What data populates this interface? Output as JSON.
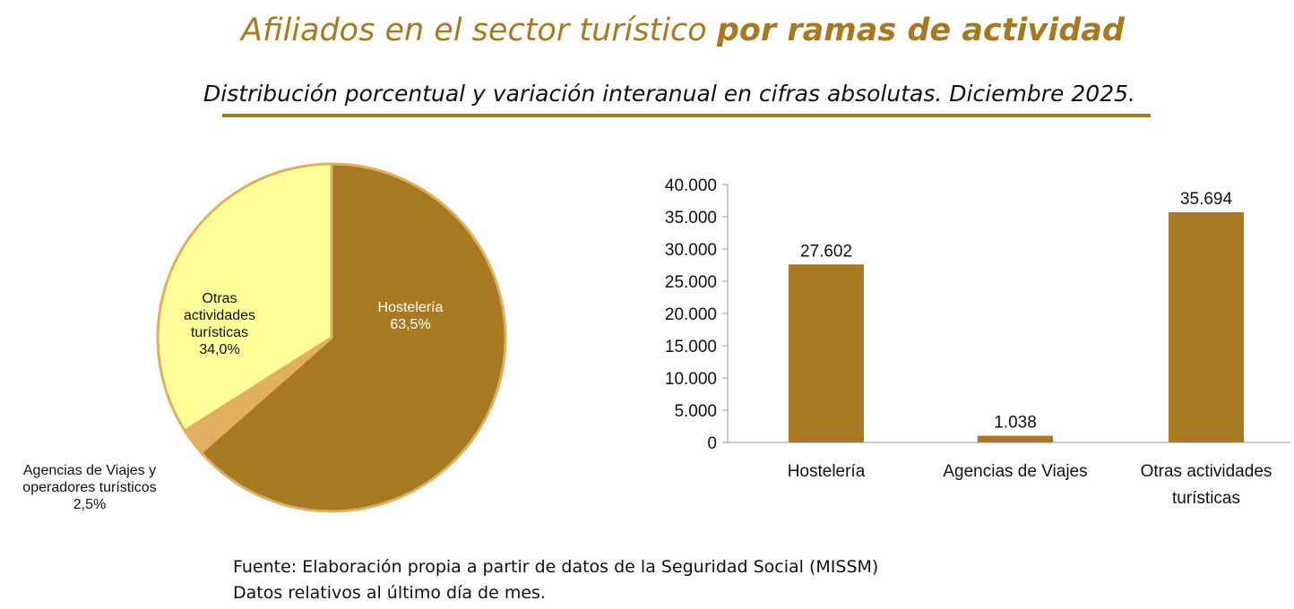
{
  "title": {
    "normal": "Afiliados en el sector turístico ",
    "bold": "por ramas de actividad"
  },
  "subtitle": "Distribución porcentual y variación interanual en cifras absolutas. Diciembre 2025.",
  "footer": [
    "Fuente: Elaboración propia a partir de datos de la Seguridad Social (MISSM)",
    "Datos relativos al último día de mes."
  ],
  "chart_data": [
    {
      "type": "pie",
      "slices": [
        {
          "label": [
            "Hostelería",
            "63,5%"
          ],
          "value": 63.5,
          "color": "#A87923",
          "text_color": "#ffffff"
        },
        {
          "label": [
            "Agencias de Viajes y",
            "operadores  turísticos",
            "2,5%"
          ],
          "value": 2.5,
          "color": "#E0B060",
          "text_color": "#111111"
        },
        {
          "label": [
            "Otras",
            "actividades",
            "turísticas",
            "34,0%"
          ],
          "value": 34.0,
          "color": "#FFFF99",
          "text_color": "#111111"
        }
      ],
      "border_color": "#E0B060"
    },
    {
      "type": "bar",
      "categories": [
        [
          "Hostelería"
        ],
        [
          "Agencias de Viajes"
        ],
        [
          "Otras actividades",
          "turísticas"
        ]
      ],
      "values": [
        27602,
        1038,
        35694
      ],
      "value_labels": [
        "27.602",
        "1.038",
        "35.694"
      ],
      "ylim": [
        0,
        40000
      ],
      "yticks": [
        "0",
        "5.000",
        "10.000",
        "15.000",
        "20.000",
        "25.000",
        "30.000",
        "35.000",
        "40.000"
      ],
      "color": "#A87923",
      "grid": false
    }
  ]
}
